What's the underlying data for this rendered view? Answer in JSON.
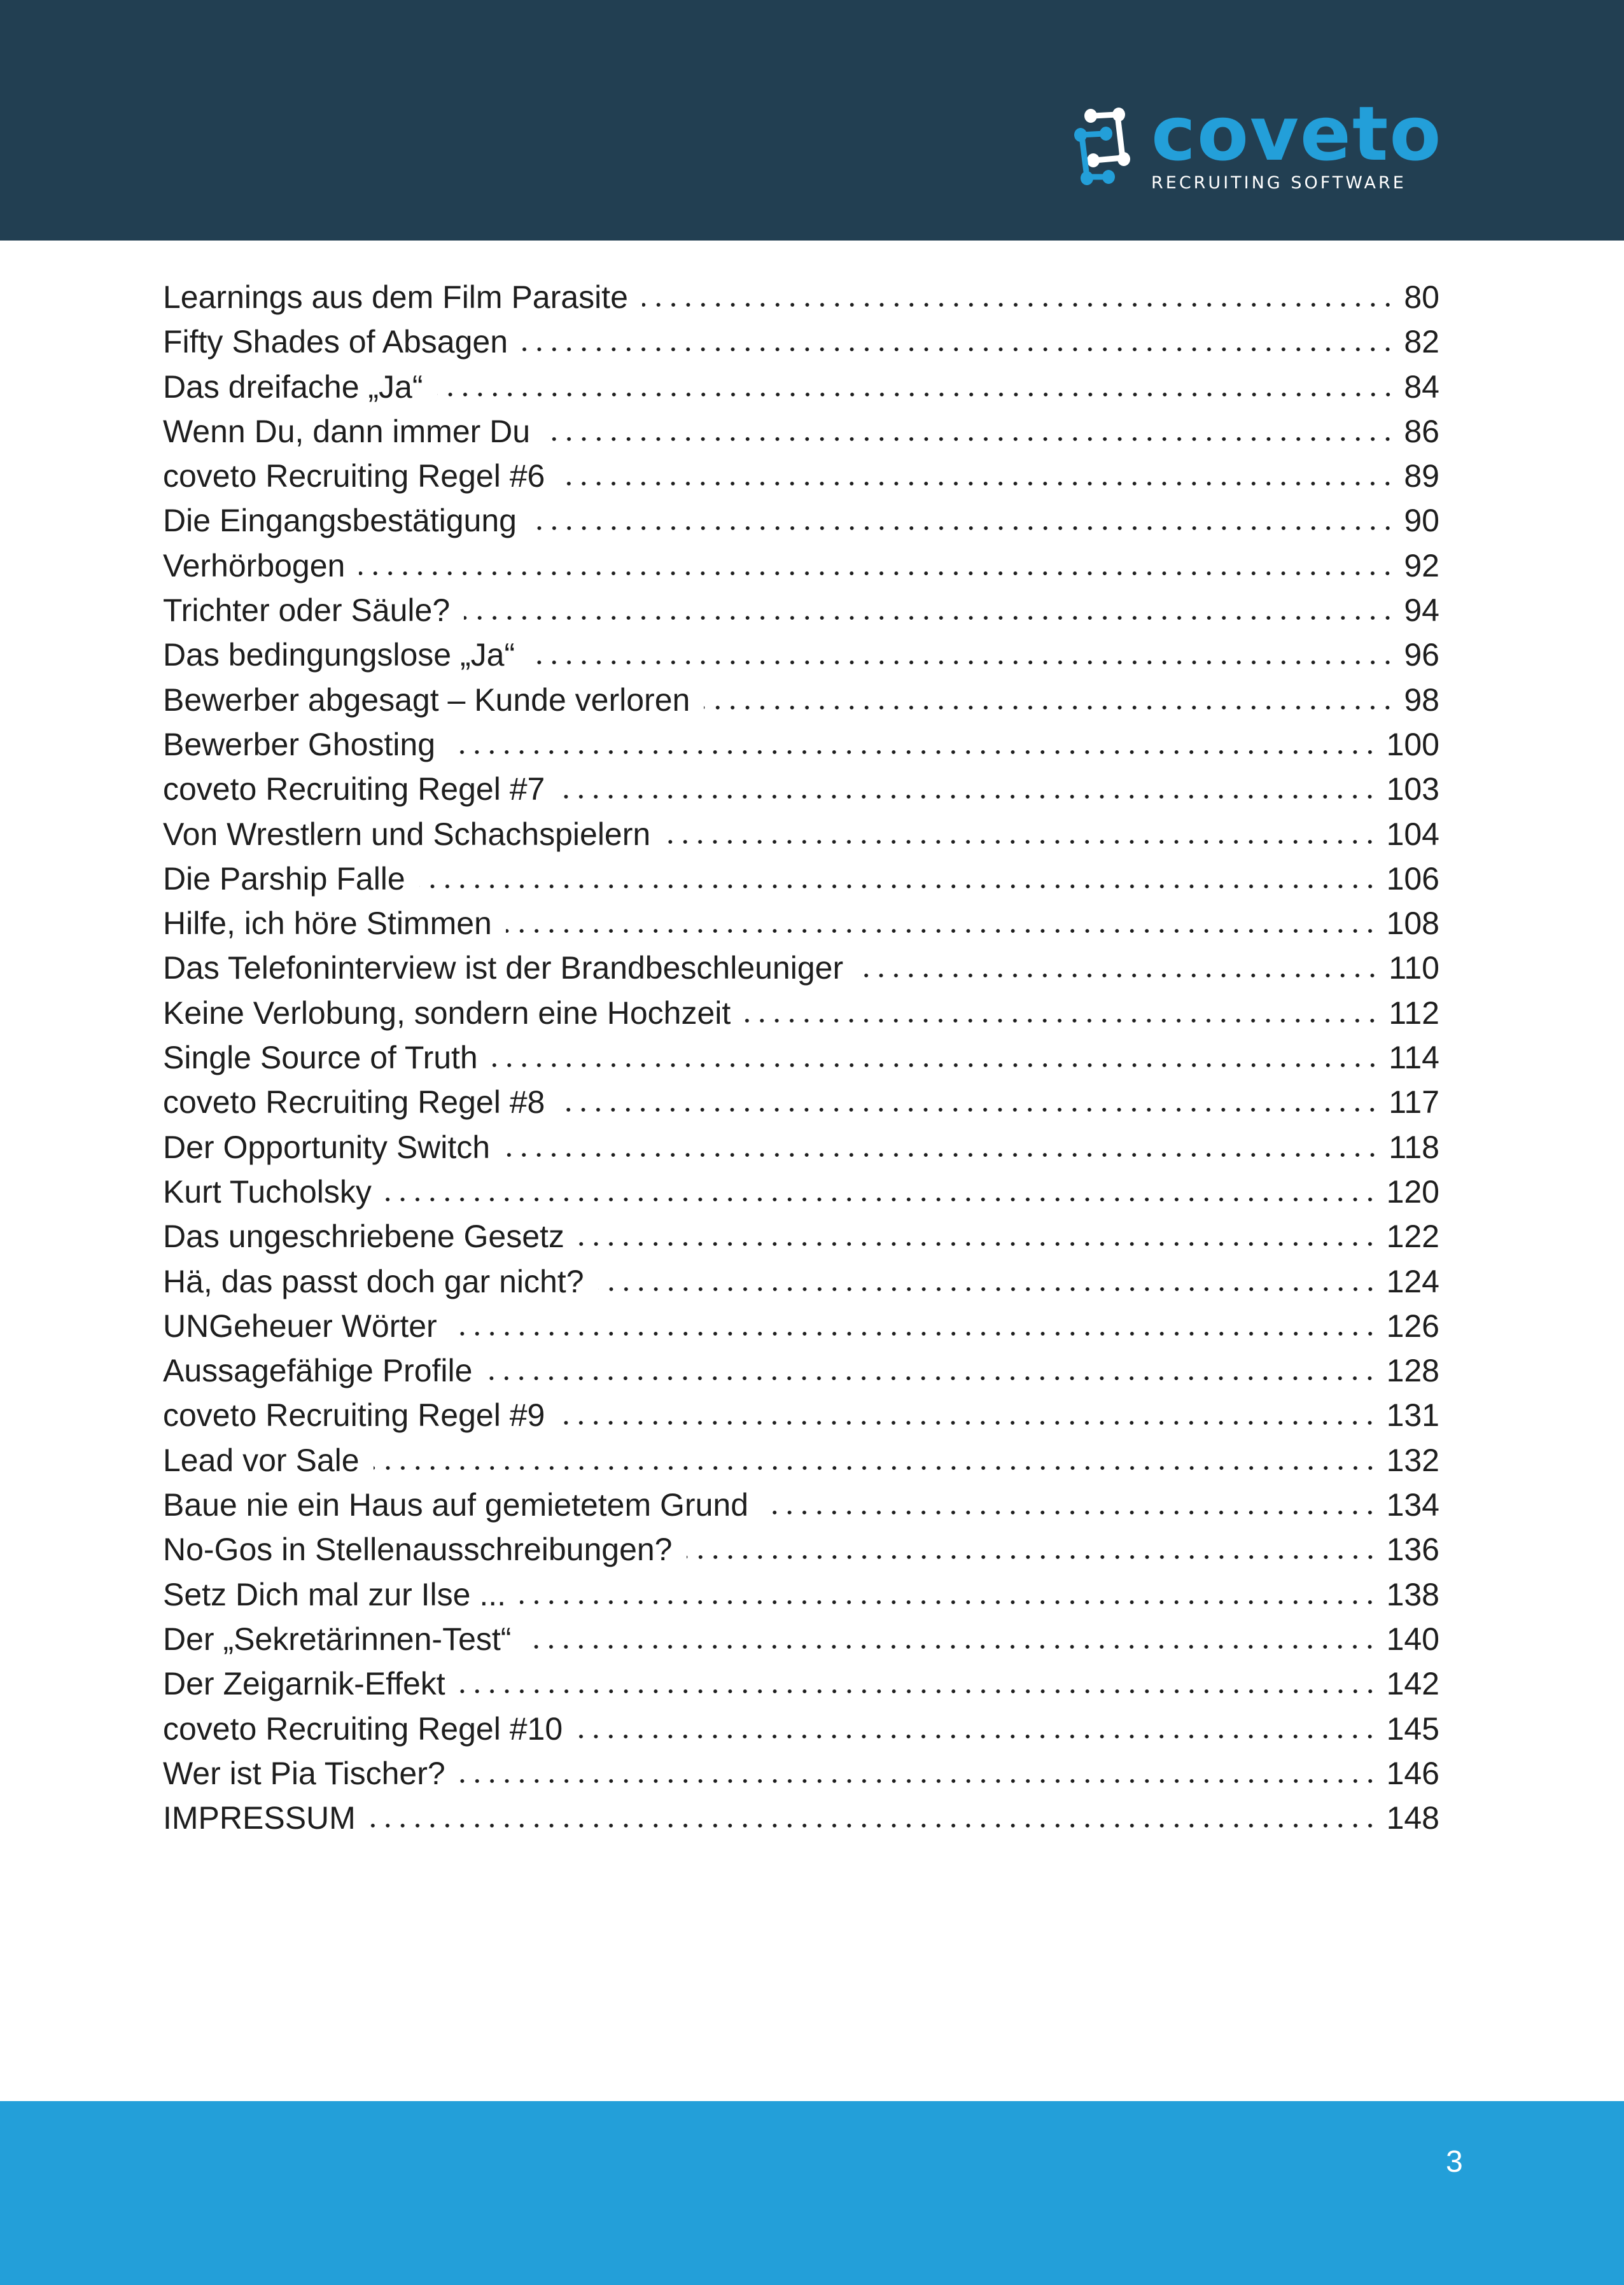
{
  "logo": {
    "name": "coveto",
    "tagline": "RECRUITING SOFTWARE",
    "colors": {
      "brand": "#239fd9",
      "header": "#223f52"
    }
  },
  "toc": [
    {
      "title": "Learnings aus dem Film Parasite",
      "page": "80"
    },
    {
      "title": "Fifty Shades of Absagen",
      "page": "82"
    },
    {
      "title": "Das dreifache „Ja“",
      "page": "84"
    },
    {
      "title": "Wenn Du, dann immer Du",
      "page": "86"
    },
    {
      "title": "coveto Recruiting Regel #6",
      "page": "89"
    },
    {
      "title": "Die Eingangsbestätigung",
      "page": "90"
    },
    {
      "title": "Verhörbogen",
      "page": "92"
    },
    {
      "title": "Trichter oder Säule?",
      "page": "94"
    },
    {
      "title": "Das bedingungslose „Ja“",
      "page": "96"
    },
    {
      "title": "Bewerber abgesagt – Kunde verloren",
      "page": "98"
    },
    {
      "title": "Bewerber Ghosting",
      "page": "100"
    },
    {
      "title": "coveto Recruiting Regel #7",
      "page": "103"
    },
    {
      "title": "Von Wrestlern und Schachspielern",
      "page": "104"
    },
    {
      "title": "Die Parship Falle",
      "page": "106"
    },
    {
      "title": "Hilfe, ich höre Stimmen",
      "page": "108"
    },
    {
      "title": "Das Telefoninterview ist der Brandbeschleuniger",
      "page": "110"
    },
    {
      "title": "Keine Verlobung, sondern eine Hochzeit",
      "page": "112"
    },
    {
      "title": "Single Source of Truth",
      "page": "114"
    },
    {
      "title": "coveto Recruiting Regel #8",
      "page": "117"
    },
    {
      "title": "Der Opportunity Switch",
      "page": "118"
    },
    {
      "title": "Kurt Tucholsky",
      "page": "120"
    },
    {
      "title": "Das ungeschriebene Gesetz",
      "page": "122"
    },
    {
      "title": "Hä, das passt doch gar nicht?",
      "page": "124"
    },
    {
      "title": "UNGeheuer Wörter",
      "page": "126"
    },
    {
      "title": "Aussagefähige Profile",
      "page": "128"
    },
    {
      "title": "coveto Recruiting Regel #9",
      "page": "131"
    },
    {
      "title": "Lead vor Sale",
      "page": "132"
    },
    {
      "title": "Baue nie ein Haus auf gemietetem Grund",
      "page": "134"
    },
    {
      "title": "No-Gos in Stellenausschreibungen?",
      "page": "136"
    },
    {
      "title": "Setz Dich mal zur Ilse ...",
      "page": "138"
    },
    {
      "title": "Der „Sekretärinnen-Test“",
      "page": "140"
    },
    {
      "title": "Der Zeigarnik-Effekt",
      "page": "142"
    },
    {
      "title": "coveto Recruiting Regel #10",
      "page": "145"
    },
    {
      "title": "Wer ist Pia Tischer?",
      "page": "146"
    },
    {
      "title": "IMPRESSUM",
      "page": "148"
    }
  ],
  "footer": {
    "page_number": "3",
    "color": "#239fd9"
  }
}
